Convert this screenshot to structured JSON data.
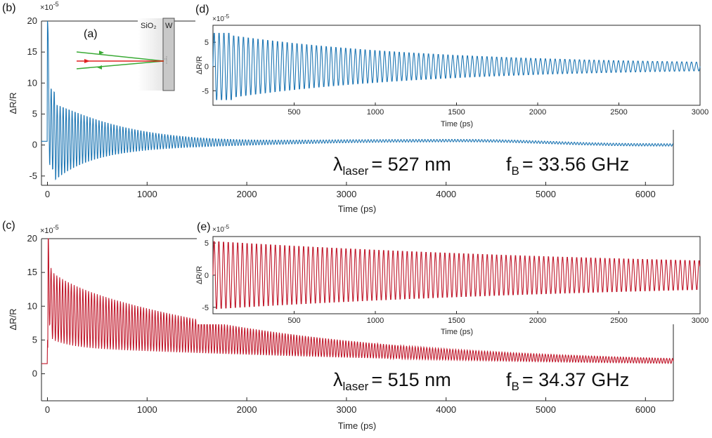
{
  "colors": {
    "blue": "#1f77b4",
    "red": "#c0182b",
    "axis": "#262626"
  },
  "panel_labels": {
    "b": "(b)",
    "c": "(c)",
    "d": "(d)",
    "e": "(e)",
    "a": "(a)"
  },
  "schematic": {
    "left_material": "SiO₂",
    "right_material": "W"
  },
  "annotations": {
    "b": {
      "lambda_prefix": "λ",
      "lambda_sub": "laser",
      "lambda_value": "= 527 nm",
      "f_prefix": "f",
      "f_sub": "B",
      "f_value": "= 33.56 GHz"
    },
    "c": {
      "lambda_prefix": "λ",
      "lambda_sub": "laser",
      "lambda_value": "= 515 nm",
      "f_prefix": "f",
      "f_sub": "B",
      "f_value": "= 34.37 GHz"
    }
  },
  "chart_data": [
    {
      "id": "b",
      "type": "line",
      "xlabel": "Time (ps)",
      "ylabel": "ΔR/R",
      "y_exponent_label": "×10",
      "y_exponent": "-5",
      "xlim": [
        -60,
        6280
      ],
      "ylim": [
        -6.5,
        20
      ],
      "xticks": [
        0,
        1000,
        2000,
        3000,
        4000,
        5000,
        6000
      ],
      "yticks": [
        -5,
        0,
        5,
        10,
        15,
        20
      ],
      "series": [
        {
          "color": "#1f77b4",
          "x": [
            -60,
            6280
          ],
          "y": [
            0.6,
            -0.1
          ],
          "oscillation_frequency_GHz": 33.56,
          "initial_peak": 20,
          "amplitude_start": 7,
          "decay_ps": 600
        }
      ]
    },
    {
      "id": "c",
      "type": "line",
      "xlabel": "Time (ps)",
      "ylabel": "ΔR/R",
      "y_exponent_label": "×10",
      "y_exponent": "-5",
      "xlim": [
        -60,
        6280
      ],
      "ylim": [
        -4,
        20
      ],
      "xticks": [
        0,
        1000,
        2000,
        3000,
        4000,
        5000,
        6000
      ],
      "yticks": [
        0,
        5,
        10,
        15,
        20
      ],
      "series": [
        {
          "color": "#c0182b",
          "x": [
            -60,
            6280
          ],
          "y": [
            1.5,
            1.2
          ],
          "oscillation_frequency_GHz": 34.37,
          "initial_peak": 19,
          "amplitude_start": 5,
          "decay_ps": 2000
        }
      ]
    },
    {
      "id": "d",
      "type": "line",
      "xlabel": "Time (ps)",
      "ylabel": "ΔR/R",
      "y_exponent_label": "×10",
      "y_exponent": "-5",
      "xlim": [
        0,
        3000
      ],
      "ylim": [
        -8,
        8.5
      ],
      "xticks": [
        500,
        1000,
        1500,
        2000,
        2500,
        3000
      ],
      "yticks": [
        -5,
        0,
        5
      ],
      "series": [
        {
          "color": "#1f77b4",
          "oscillation_frequency_GHz": 33.56,
          "amplitude_start": 7,
          "decay_ps": 1250
        }
      ]
    },
    {
      "id": "e",
      "type": "line",
      "xlabel": "Time (ps)",
      "ylabel": "ΔR/R",
      "y_exponent_label": "×10",
      "y_exponent": "-5",
      "xlim": [
        0,
        3000
      ],
      "ylim": [
        -6,
        6
      ],
      "xticks": [
        500,
        1000,
        1500,
        2000,
        2500,
        3000
      ],
      "yticks": [
        -5,
        0,
        5
      ],
      "series": [
        {
          "color": "#c0182b",
          "oscillation_frequency_GHz": 34.37,
          "amplitude_start": 5,
          "decay_ps": 3000
        }
      ]
    }
  ]
}
